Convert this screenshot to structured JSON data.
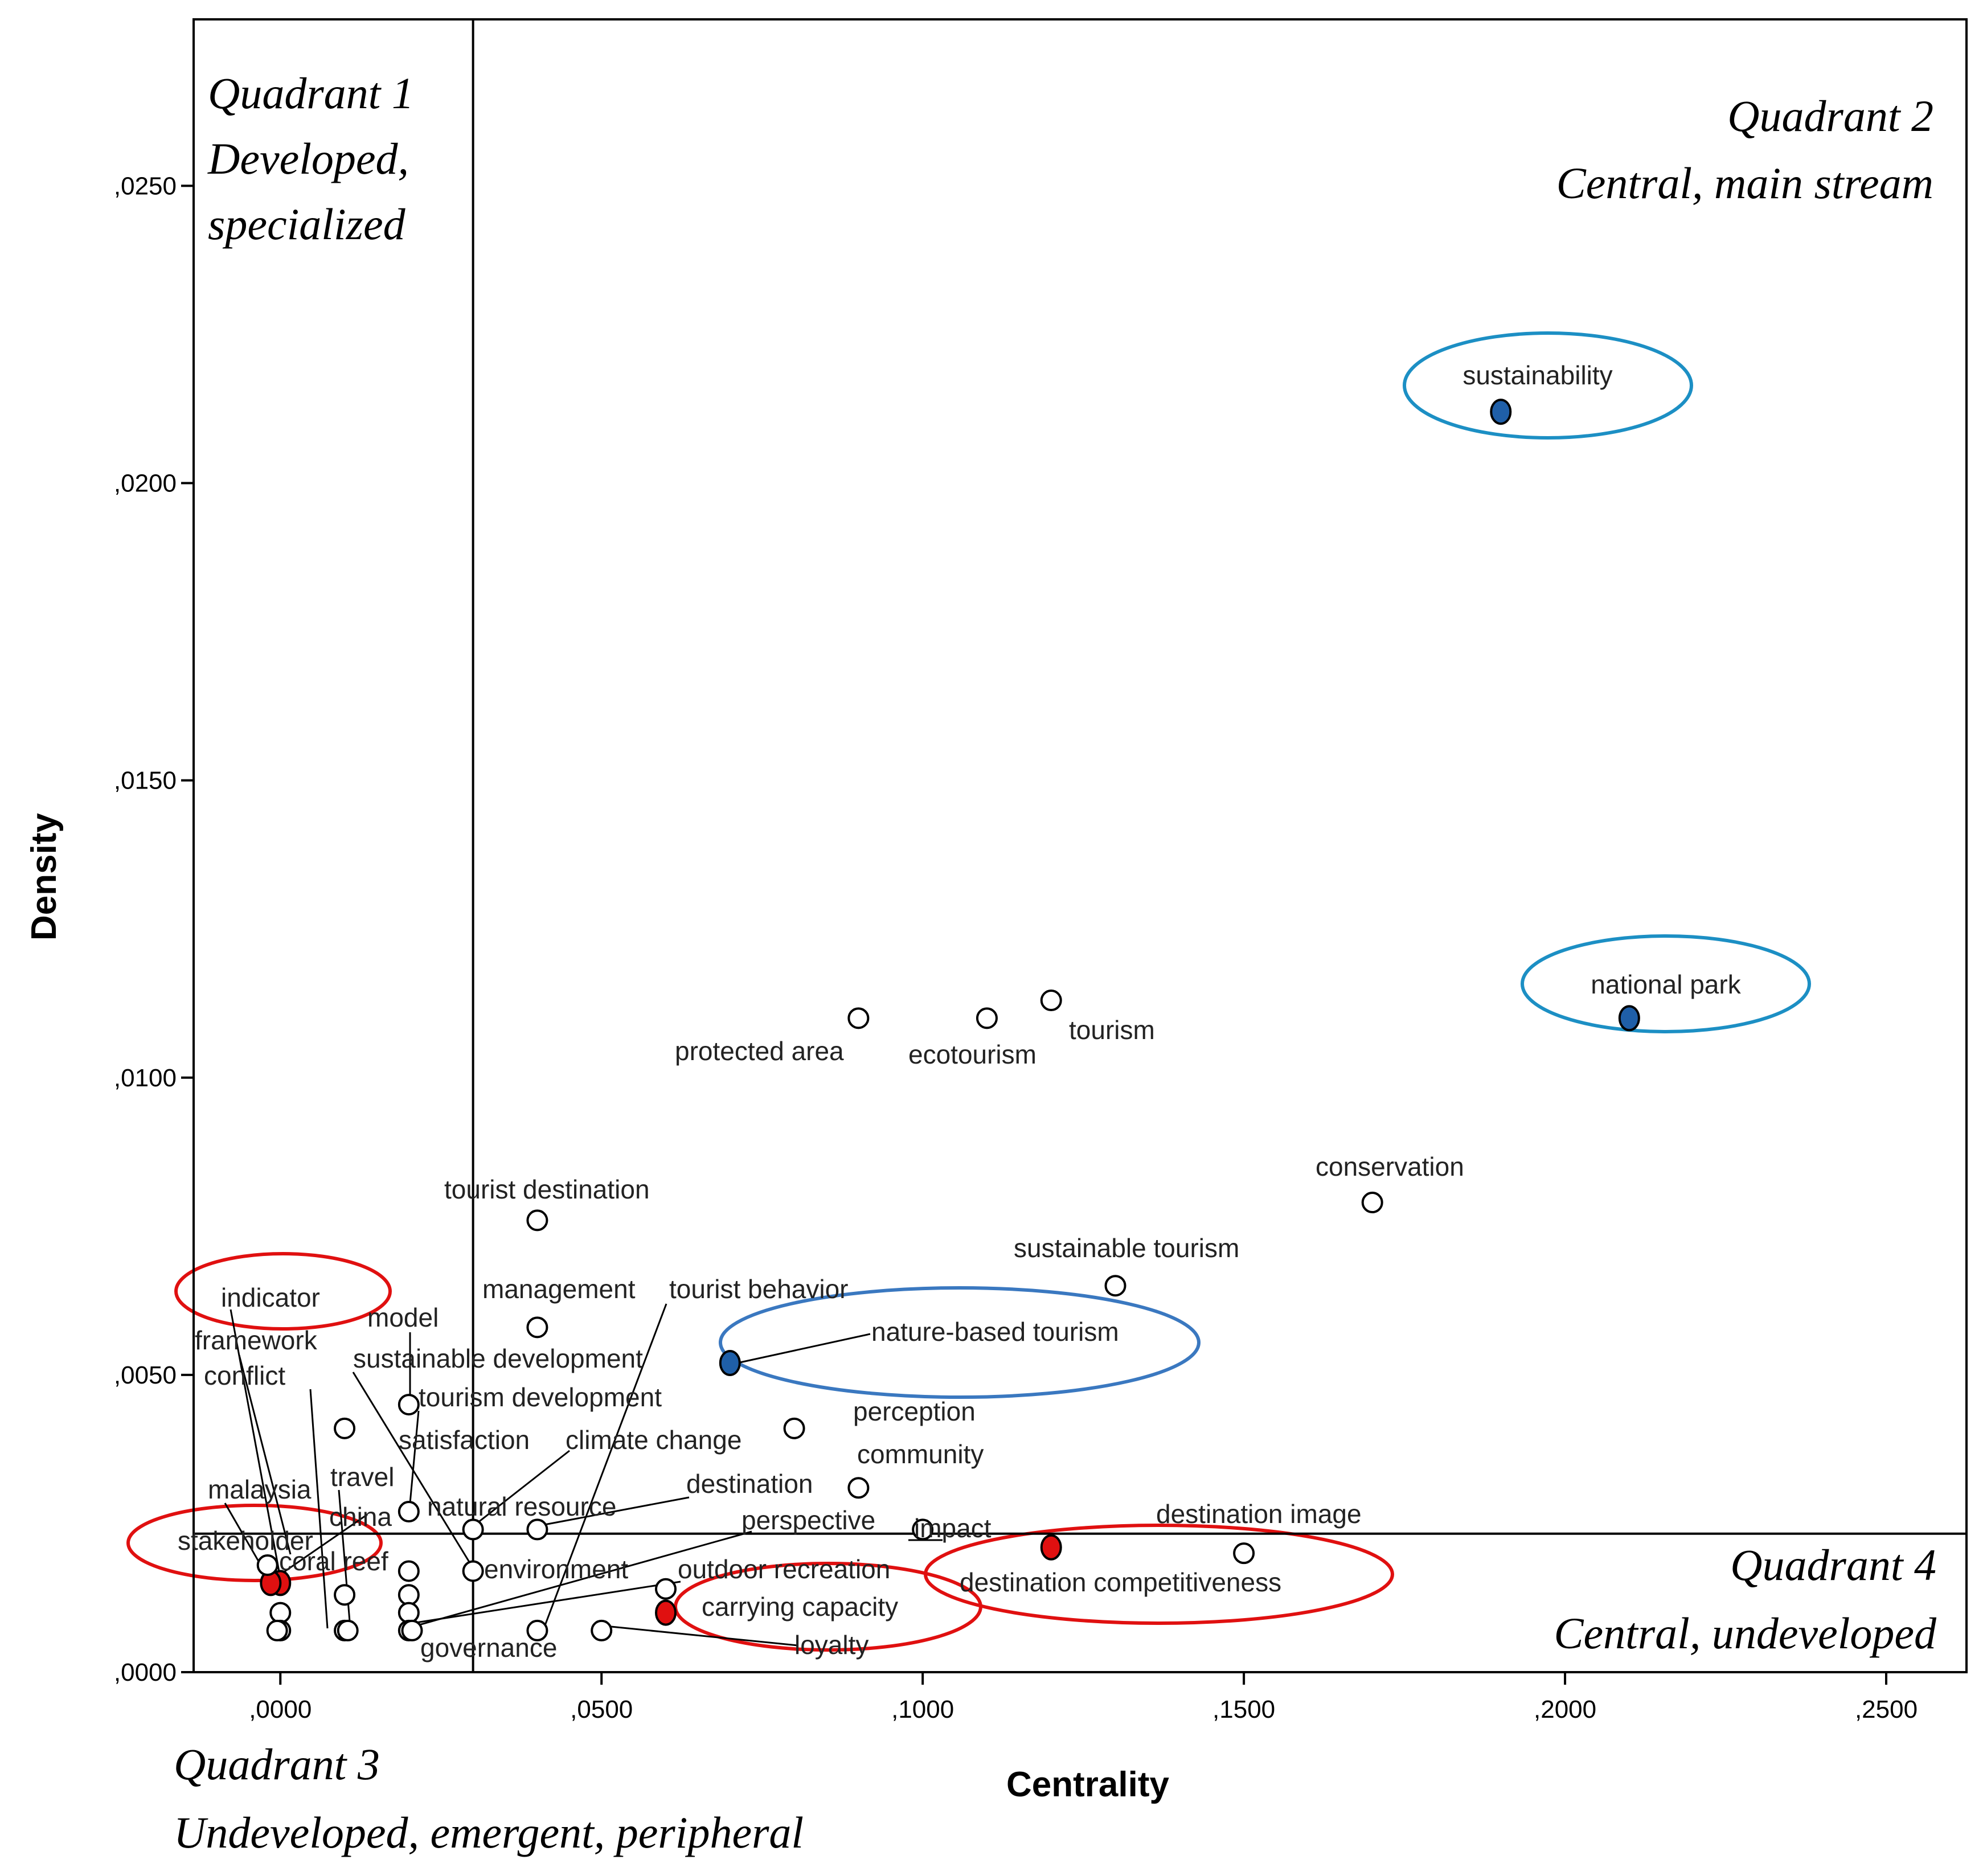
{
  "chart_data": {
    "type": "scatter",
    "title": "",
    "xlabel": "Centrality",
    "ylabel": "Density",
    "xlim": [
      -0.0135,
      0.2625
    ],
    "ylim": [
      0,
      0.0278
    ],
    "xticks": [
      ",0000",
      ",0500",
      ",1000",
      ",1500",
      ",2000",
      ",2500"
    ],
    "xtick_values": [
      0,
      0.05,
      0.1,
      0.15,
      0.2,
      0.25
    ],
    "yticks": [
      ",0000",
      ",0050",
      ",0100",
      ",0150",
      ",0200",
      ",0250"
    ],
    "ytick_values": [
      0,
      0.005,
      0.01,
      0.015,
      0.02,
      0.025
    ],
    "quadrant_split": {
      "x": 0.03,
      "y": 0.00233
    },
    "colors": {
      "open": "#ffffff",
      "blue": "#1f5fa8",
      "red": "#e01010",
      "blue_ellipse": "#1c8fc4",
      "mid_blue_ellipse": "#3a78c0",
      "red_ellipse": "#e01010"
    },
    "quadrants": [
      {
        "id": "q1",
        "lines": [
          "Quadrant 1",
          "Developed,",
          "specialized"
        ]
      },
      {
        "id": "q2",
        "lines": [
          "Quadrant 2",
          "Central, main stream"
        ]
      },
      {
        "id": "q3",
        "lines": [
          "Quadrant 3",
          "Undeveloped, emergent, peripheral"
        ]
      },
      {
        "id": "q4",
        "lines": [
          "Quadrant 4",
          "Central, undeveloped"
        ]
      }
    ],
    "points": [
      {
        "label": "sustainability",
        "x": 0.19,
        "y": 0.0212,
        "fill": "blue"
      },
      {
        "label": "national park",
        "x": 0.21,
        "y": 0.011,
        "fill": "blue"
      },
      {
        "label": "tourism",
        "x": 0.12,
        "y": 0.0113,
        "fill": "open"
      },
      {
        "label": "ecotourism",
        "x": 0.11,
        "y": 0.011,
        "fill": "open"
      },
      {
        "label": "protected area",
        "x": 0.09,
        "y": 0.011,
        "fill": "open"
      },
      {
        "label": "conservation",
        "x": 0.17,
        "y": 0.0079,
        "fill": "open"
      },
      {
        "label": "sustainable tourism",
        "x": 0.13,
        "y": 0.0065,
        "fill": "open"
      },
      {
        "label": "tourist destination",
        "x": 0.04,
        "y": 0.0076,
        "fill": "open"
      },
      {
        "label": "management",
        "x": 0.04,
        "y": 0.0058,
        "fill": "open"
      },
      {
        "label": "nature-based tourism",
        "x": 0.07,
        "y": 0.0052,
        "fill": "blue"
      },
      {
        "label": "perception",
        "x": 0.08,
        "y": 0.0041,
        "fill": "open"
      },
      {
        "label": "community",
        "x": 0.09,
        "y": 0.0031,
        "fill": "open"
      },
      {
        "label": "model",
        "x": 0.02,
        "y": 0.0045,
        "fill": "open"
      },
      {
        "label": "framework",
        "x": 0.01,
        "y": 0.0041,
        "fill": "open"
      },
      {
        "label": "travel",
        "x": 0.02,
        "y": 0.0027,
        "fill": "open"
      },
      {
        "label": "destination",
        "x": 0.04,
        "y": 0.0024,
        "fill": "open"
      },
      {
        "label": "natural resource",
        "x": 0.03,
        "y": 0.0024,
        "fill": "open"
      },
      {
        "label": "destination competitiveness",
        "x": 0.12,
        "y": 0.0021,
        "fill": "red"
      },
      {
        "label": "destination image",
        "x": 0.15,
        "y": 0.002,
        "fill": "open"
      },
      {
        "label": "impact",
        "x": 0.1,
        "y": 0.0024,
        "fill": "open"
      },
      {
        "label": "carrying capacity",
        "x": 0.06,
        "y": 0.001,
        "fill": "red"
      },
      {
        "label": "loyalty",
        "x": 0.05,
        "y": 0.0007,
        "fill": "open"
      },
      {
        "label": "governance",
        "x": 0.04,
        "y": 0.0007,
        "fill": "open"
      },
      {
        "label": "outdoor recreation",
        "x": 0.06,
        "y": 0.0014,
        "fill": "open"
      },
      {
        "label": "environment",
        "x": 0.03,
        "y": 0.0017,
        "fill": "open"
      },
      {
        "label": "indicator",
        "x": 0.0,
        "y": 0.0015,
        "fill": "red"
      },
      {
        "label": "stakeholder",
        "x": -0.0015,
        "y": 0.0015,
        "fill": "red"
      },
      {
        "label": "",
        "x": 0.0,
        "y": 0.001,
        "fill": "open"
      },
      {
        "label": "",
        "x": 0.0,
        "y": 0.0007,
        "fill": "open"
      },
      {
        "label": "",
        "x": -0.0005,
        "y": 0.0007,
        "fill": "open"
      },
      {
        "label": "",
        "x": 0.01,
        "y": 0.0013,
        "fill": "open"
      },
      {
        "label": "",
        "x": 0.01,
        "y": 0.0007,
        "fill": "open"
      },
      {
        "label": "",
        "x": 0.0105,
        "y": 0.0007,
        "fill": "open"
      },
      {
        "label": "",
        "x": 0.02,
        "y": 0.0017,
        "fill": "open"
      },
      {
        "label": "",
        "x": 0.02,
        "y": 0.0013,
        "fill": "open"
      },
      {
        "label": "",
        "x": 0.02,
        "y": 0.001,
        "fill": "open"
      },
      {
        "label": "",
        "x": 0.02,
        "y": 0.0007,
        "fill": "open"
      },
      {
        "label": "",
        "x": 0.0205,
        "y": 0.0007,
        "fill": "open"
      },
      {
        "label": "",
        "x": -0.002,
        "y": 0.0018,
        "fill": "open"
      }
    ],
    "extra_labels": [
      "tourist behavior",
      "sustainable development",
      "tourism development",
      "satisfaction",
      "climate change",
      "conflict",
      "malaysia",
      "china",
      "coral reef",
      "perspective"
    ],
    "highlight_ellipses": [
      {
        "around": "sustainability",
        "color": "blue_ellipse"
      },
      {
        "around": "national park",
        "color": "blue_ellipse"
      },
      {
        "around": "nature-based tourism",
        "color": "mid_blue_ellipse"
      },
      {
        "around": "indicator",
        "color": "red_ellipse"
      },
      {
        "around": "stakeholder",
        "color": "red_ellipse"
      },
      {
        "around": "carrying capacity",
        "color": "red_ellipse"
      },
      {
        "around": "destination competitiveness",
        "color": "red_ellipse"
      }
    ]
  }
}
